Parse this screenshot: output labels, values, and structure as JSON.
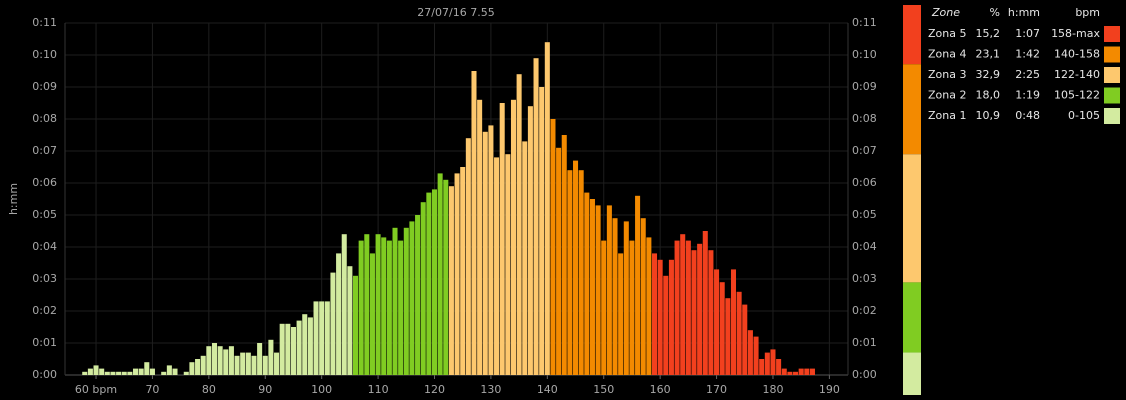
{
  "chart_data": {
    "type": "bar",
    "title": "27/07/16 7.55",
    "y_label": "h:mm",
    "xlim": [
      54.5,
      193.3
    ],
    "xticks": [
      {
        "value": 60,
        "label": "60 bpm"
      },
      70,
      80,
      90,
      100,
      110,
      120,
      130,
      140,
      150,
      160,
      170,
      180,
      190
    ],
    "ylim": [
      0,
      11
    ],
    "yticks": [
      {
        "value": 0,
        "label": "0:00"
      },
      {
        "value": 1,
        "label": "0:01"
      },
      {
        "value": 2,
        "label": "0:02"
      },
      {
        "value": 3,
        "label": "0:03"
      },
      {
        "value": 4,
        "label": "0:04"
      },
      {
        "value": 5,
        "label": "0:05"
      },
      {
        "value": 6,
        "label": "0:06"
      },
      {
        "value": 7,
        "label": "0:07"
      },
      {
        "value": 8,
        "label": "0:08"
      },
      {
        "value": 9,
        "label": "0:09"
      },
      {
        "value": 10,
        "label": "0:10"
      },
      {
        "value": 11,
        "label": "0:11"
      }
    ],
    "grid": true,
    "legend_headers": [
      "Zone",
      "%",
      "h:mm",
      "bpm"
    ],
    "series": [
      {
        "name": "Zona 5",
        "color": "#f2401e",
        "percent": 15.2,
        "percent_label": "15,2",
        "time": "1:07",
        "range": "158-max",
        "x": [
          159,
          160,
          161,
          162,
          163,
          164,
          165,
          166,
          167,
          168,
          169,
          170,
          171,
          172,
          173,
          174,
          175,
          176,
          177,
          178,
          179,
          180,
          181,
          182,
          183,
          184,
          185,
          186,
          187
        ],
        "values": [
          3.8,
          3.6,
          3.1,
          3.6,
          4.2,
          4.4,
          4.2,
          3.9,
          4.1,
          4.5,
          3.9,
          3.3,
          2.9,
          2.4,
          3.3,
          2.6,
          2.2,
          1.4,
          1.2,
          0.5,
          0.7,
          0.8,
          0.5,
          0.2,
          0.1,
          0.1,
          0.2,
          0.2,
          0.2
        ]
      },
      {
        "name": "Zona 4",
        "color": "#f38a00",
        "percent": 23.1,
        "percent_label": "23,1",
        "time": "1:42",
        "range": "140-158",
        "x": [
          141,
          142,
          143,
          144,
          145,
          146,
          147,
          148,
          149,
          150,
          151,
          152,
          153,
          154,
          155,
          156,
          157,
          158
        ],
        "values": [
          8.0,
          7.1,
          7.5,
          6.4,
          6.7,
          6.4,
          5.7,
          5.5,
          5.3,
          4.2,
          5.3,
          4.9,
          3.8,
          4.8,
          4.2,
          5.6,
          4.9,
          4.3
        ]
      },
      {
        "name": "Zona 3",
        "color": "#fdc86e",
        "percent": 32.9,
        "percent_label": "32,9",
        "time": "2:25",
        "range": "122-140",
        "x": [
          123,
          124,
          125,
          126,
          127,
          128,
          129,
          130,
          131,
          132,
          133,
          134,
          135,
          136,
          137,
          138,
          139,
          140
        ],
        "values": [
          5.9,
          6.3,
          6.5,
          7.4,
          9.5,
          8.6,
          7.6,
          7.8,
          6.8,
          8.5,
          6.9,
          8.6,
          9.4,
          7.3,
          8.4,
          9.9,
          9.0,
          10.4
        ]
      },
      {
        "name": "Zona 2",
        "color": "#80cc22",
        "percent": 18.0,
        "percent_label": "18,0",
        "time": "1:19",
        "range": "105-122",
        "x": [
          106,
          107,
          108,
          109,
          110,
          111,
          112,
          113,
          114,
          115,
          116,
          117,
          118,
          119,
          120,
          121,
          122
        ],
        "values": [
          3.1,
          4.2,
          4.4,
          3.8,
          4.4,
          4.3,
          4.2,
          4.6,
          4.2,
          4.6,
          4.8,
          5.0,
          5.4,
          5.7,
          5.8,
          6.3,
          6.1
        ]
      },
      {
        "name": "Zona 1",
        "color": "#d3eba0",
        "percent": 10.9,
        "percent_label": "10,9",
        "time": "0:48",
        "range": "0-105",
        "x": [
          58,
          59,
          60,
          61,
          62,
          63,
          64,
          65,
          66,
          67,
          68,
          69,
          70,
          71,
          72,
          73,
          74,
          75,
          76,
          77,
          78,
          79,
          80,
          81,
          82,
          83,
          84,
          85,
          86,
          87,
          88,
          89,
          90,
          91,
          92,
          93,
          94,
          95,
          96,
          97,
          98,
          99,
          100,
          101,
          102,
          103,
          104,
          105
        ],
        "values": [
          0.1,
          0.2,
          0.3,
          0.2,
          0.1,
          0.1,
          0.1,
          0.1,
          0.1,
          0.2,
          0.2,
          0.4,
          0.2,
          0,
          0.1,
          0.3,
          0.2,
          0,
          0.1,
          0.4,
          0.5,
          0.6,
          0.9,
          1.0,
          0.9,
          0.8,
          0.9,
          0.6,
          0.7,
          0.7,
          0.6,
          1.0,
          0.6,
          1.1,
          0.7,
          1.6,
          1.6,
          1.5,
          1.7,
          1.9,
          1.8,
          2.3,
          2.3,
          2.3,
          3.2,
          3.8,
          4.4,
          3.4
        ]
      }
    ]
  }
}
